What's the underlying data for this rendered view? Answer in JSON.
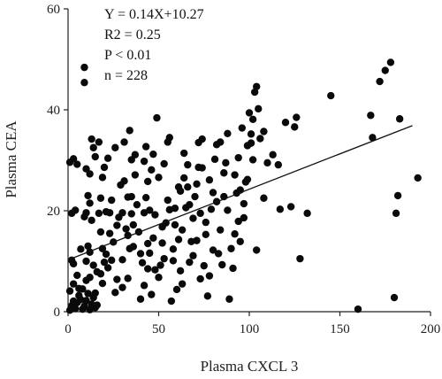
{
  "chart_data": {
    "type": "scatter",
    "title": "",
    "xlabel": "Plasma CXCL 3",
    "ylabel": "Plasma CEA",
    "xlim": [
      0,
      200
    ],
    "ylim": [
      0,
      60
    ],
    "xticks": [
      "0",
      "50",
      "100",
      "150",
      "200"
    ],
    "yticks": [
      "0",
      "20",
      "40",
      "60"
    ],
    "grid": false,
    "annotations": [
      "Y = 0.14X+10.27",
      "R2 = 0.25",
      "P < 0.01",
      "n = 228"
    ],
    "regression": {
      "slope": 0.14,
      "intercept": 10.27,
      "x_range": [
        0,
        190
      ]
    },
    "points": [
      [
        1,
        0.3
      ],
      [
        2,
        1.2
      ],
      [
        3,
        2.1
      ],
      [
        4,
        0.6
      ],
      [
        5,
        1.8
      ],
      [
        6,
        3.2
      ],
      [
        1,
        4.1
      ],
      [
        3,
        9.5
      ],
      [
        2,
        10.2
      ],
      [
        4,
        20.1
      ],
      [
        2,
        19.5
      ],
      [
        1,
        29.6
      ],
      [
        3,
        30.3
      ],
      [
        5,
        29.2
      ],
      [
        8,
        0.5
      ],
      [
        9,
        1.1
      ],
      [
        10,
        2.2
      ],
      [
        11,
        3.6
      ],
      [
        12,
        0.4
      ],
      [
        13,
        1.5
      ],
      [
        14,
        2.8
      ],
      [
        15,
        0.8
      ],
      [
        16,
        1.3
      ],
      [
        10,
        6.2
      ],
      [
        12,
        6.8
      ],
      [
        10,
        10
      ],
      [
        12,
        11.8
      ],
      [
        14,
        9.2
      ],
      [
        11,
        13
      ],
      [
        9,
        18.8
      ],
      [
        10,
        19.6
      ],
      [
        11,
        23
      ],
      [
        10,
        28.3
      ],
      [
        12,
        27.3
      ],
      [
        13,
        34.2
      ],
      [
        14,
        32.5
      ],
      [
        15,
        30.7
      ],
      [
        9,
        48.4
      ],
      [
        9,
        45.4
      ],
      [
        18,
        7.5
      ],
      [
        20,
        9.8
      ],
      [
        21,
        11.4
      ],
      [
        19,
        12.5
      ],
      [
        22,
        8.7
      ],
      [
        24,
        10.2
      ],
      [
        17,
        19.5
      ],
      [
        18,
        22.5
      ],
      [
        21,
        19.8
      ],
      [
        23,
        19.6
      ],
      [
        19,
        26.6
      ],
      [
        20,
        28.6
      ],
      [
        22,
        30.4
      ],
      [
        17,
        33.6
      ],
      [
        26,
        3.8
      ],
      [
        30,
        4.8
      ],
      [
        33,
        6.6
      ],
      [
        30,
        10.3
      ],
      [
        34,
        12.5
      ],
      [
        33,
        15.1
      ],
      [
        30,
        19.6
      ],
      [
        35,
        19.4
      ],
      [
        36,
        17.2
      ],
      [
        31,
        25.9
      ],
      [
        33,
        22.7
      ],
      [
        35,
        30.1
      ],
      [
        37,
        31.1
      ],
      [
        31,
        33.6
      ],
      [
        34,
        35.9
      ],
      [
        40,
        2.5
      ],
      [
        42,
        5.2
      ],
      [
        41,
        9.7
      ],
      [
        44,
        13.5
      ],
      [
        45,
        11.6
      ],
      [
        42,
        19.6
      ],
      [
        43,
        22.6
      ],
      [
        44,
        25.8
      ],
      [
        42,
        29.8
      ],
      [
        46,
        28.1
      ],
      [
        47,
        31.2
      ],
      [
        46,
        3.4
      ],
      [
        49,
        38.4
      ],
      [
        50,
        6.8
      ],
      [
        51,
        9.2
      ],
      [
        53,
        10.5
      ],
      [
        52,
        13.6
      ],
      [
        54,
        17.6
      ],
      [
        56,
        20.2
      ],
      [
        55,
        33.6
      ],
      [
        56,
        34.5
      ],
      [
        57,
        2.1
      ],
      [
        60,
        4.4
      ],
      [
        62,
        8.1
      ],
      [
        61,
        14.3
      ],
      [
        63,
        16.2
      ],
      [
        65,
        20.6
      ],
      [
        64,
        26.5
      ],
      [
        66,
        29.1
      ],
      [
        67,
        9.8
      ],
      [
        68,
        13.9
      ],
      [
        69,
        18.5
      ],
      [
        70,
        22.8
      ],
      [
        71,
        25.3
      ],
      [
        72,
        28.6
      ],
      [
        72,
        33.5
      ],
      [
        74,
        34.2
      ],
      [
        73,
        6.5
      ],
      [
        75,
        9.1
      ],
      [
        76,
        15.3
      ],
      [
        77,
        3.1
      ],
      [
        78,
        7.1
      ],
      [
        79,
        20.3
      ],
      [
        80,
        23.6
      ],
      [
        81,
        30.2
      ],
      [
        82,
        33.1
      ],
      [
        83,
        11.5
      ],
      [
        84,
        16.2
      ],
      [
        85,
        9.3
      ],
      [
        86,
        22.8
      ],
      [
        87,
        29.5
      ],
      [
        88,
        35.3
      ],
      [
        89,
        2.5
      ],
      [
        90,
        12.5
      ],
      [
        91,
        8.6
      ],
      [
        92,
        15.4
      ],
      [
        93,
        23.5
      ],
      [
        94,
        30.5
      ],
      [
        95,
        13.9
      ],
      [
        96,
        36.4
      ],
      [
        97,
        18.6
      ],
      [
        98,
        25.7
      ],
      [
        99,
        32.9
      ],
      [
        100,
        39.4
      ],
      [
        101,
        35.2
      ],
      [
        102,
        38.1
      ],
      [
        103,
        43.5
      ],
      [
        104,
        44.6
      ],
      [
        105,
        40.2
      ],
      [
        106,
        34.3
      ],
      [
        104,
        12.2
      ],
      [
        99,
        26.2
      ],
      [
        108,
        22.5
      ],
      [
        110,
        29.5
      ],
      [
        113,
        31.1
      ],
      [
        117,
        20.3
      ],
      [
        120,
        37.5
      ],
      [
        125,
        36.6
      ],
      [
        126,
        38.5
      ],
      [
        128,
        10.5
      ],
      [
        123,
        20.8
      ],
      [
        132,
        19.5
      ],
      [
        145,
        42.8
      ],
      [
        160,
        0.5
      ],
      [
        167,
        38.9
      ],
      [
        168,
        34.5
      ],
      [
        172,
        45.6
      ],
      [
        175,
        47.8
      ],
      [
        178,
        49.4
      ],
      [
        180,
        2.8
      ],
      [
        182,
        23
      ],
      [
        181,
        19.5
      ],
      [
        183,
        38.2
      ],
      [
        193,
        26.5
      ],
      [
        6,
        4.6
      ],
      [
        7,
        2.4
      ],
      [
        8,
        4.5
      ],
      [
        15,
        3.7
      ],
      [
        16,
        7.9
      ],
      [
        25,
        13.8
      ],
      [
        27,
        17.1
      ],
      [
        28,
        18.7
      ],
      [
        38,
        21.2
      ],
      [
        39,
        15.8
      ],
      [
        48,
        8.3
      ],
      [
        58,
        12.4
      ],
      [
        59,
        20.5
      ],
      [
        62,
        23.9
      ],
      [
        64,
        31.4
      ],
      [
        52,
        16.8
      ],
      [
        47,
        14.6
      ],
      [
        73,
        19.5
      ],
      [
        66,
        24.7
      ],
      [
        86,
        27.5
      ],
      [
        94,
        17.9
      ],
      [
        102,
        30.1
      ],
      [
        108,
        35.7
      ],
      [
        116,
        29.1
      ],
      [
        12,
        21.5
      ],
      [
        18,
        15.8
      ],
      [
        23,
        15.5
      ],
      [
        29,
        25.1
      ],
      [
        40,
        11.5
      ],
      [
        44,
        8.5
      ],
      [
        55,
        22.1
      ],
      [
        63,
        5.5
      ],
      [
        69,
        11.1
      ],
      [
        74,
        28.5
      ],
      [
        78,
        26.1
      ],
      [
        84,
        33.6
      ],
      [
        92,
        27.1
      ],
      [
        97,
        21.4
      ],
      [
        101,
        33.4
      ],
      [
        27,
        6.4
      ],
      [
        36,
        12.9
      ],
      [
        45,
        20.1
      ],
      [
        59,
        17.2
      ],
      [
        71,
        14.1
      ],
      [
        82,
        21.8
      ],
      [
        5,
        7.2
      ],
      [
        3,
        5.5
      ],
      [
        7,
        12.4
      ],
      [
        13,
        18.1
      ],
      [
        19,
        5.6
      ],
      [
        24,
        22.1
      ],
      [
        32,
        16.4
      ],
      [
        37,
        27.1
      ],
      [
        48,
        19.2
      ],
      [
        53,
        29.3
      ],
      [
        61,
        24.7
      ],
      [
        67,
        21.2
      ],
      [
        76,
        17.7
      ],
      [
        88,
        20.1
      ],
      [
        95,
        24.1
      ],
      [
        58,
        10.1
      ],
      [
        43,
        32.7
      ],
      [
        50,
        26.6
      ],
      [
        35,
        22.8
      ],
      [
        26,
        32.5
      ],
      [
        80,
        12.2
      ]
    ]
  }
}
